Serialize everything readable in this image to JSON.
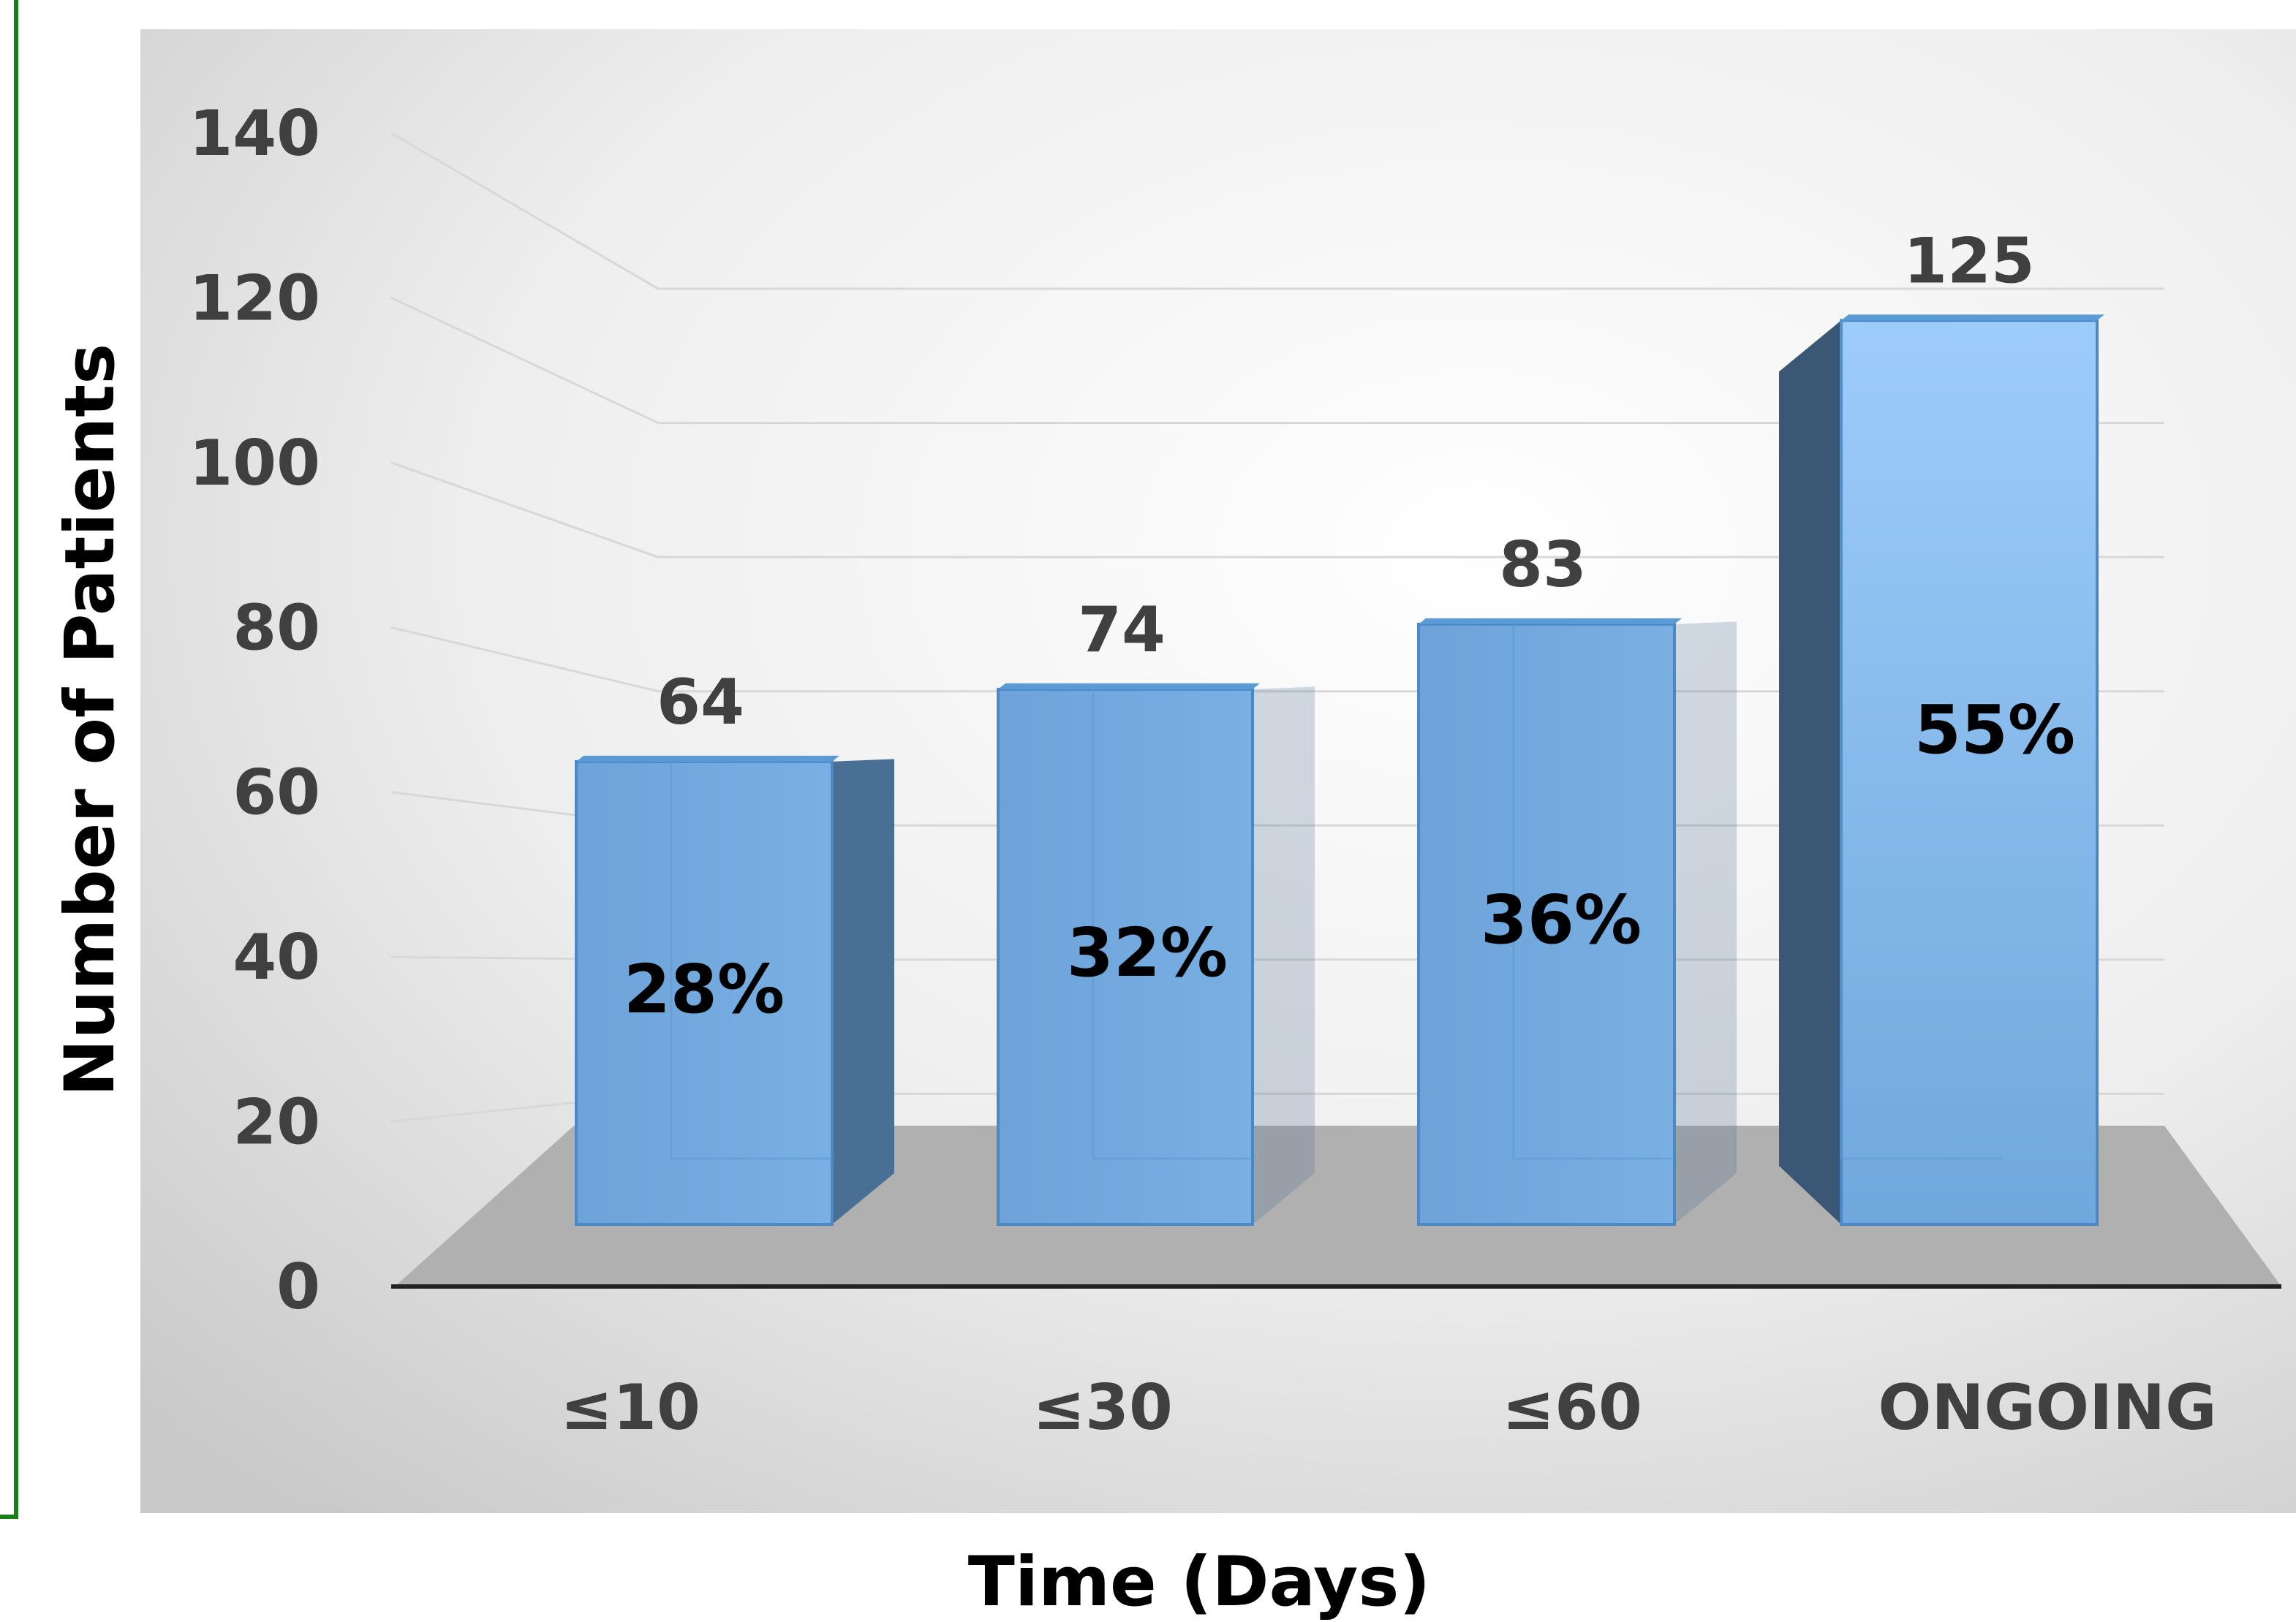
{
  "chart_data": {
    "type": "bar",
    "categories": [
      "≤10",
      "≤30",
      "≤60",
      "ONGOING"
    ],
    "values": [
      64,
      74,
      83,
      125
    ],
    "percent_labels": [
      "28%",
      "32%",
      "36%",
      "55%"
    ],
    "value_labels": [
      "64",
      "74",
      "83",
      "125"
    ],
    "xlabel": "Time (Days)",
    "ylabel": "Number of Patients",
    "ylim": [
      0,
      140
    ],
    "yticks": [
      "0",
      "20",
      "40",
      "60",
      "80",
      "100",
      "120",
      "140"
    ],
    "grid": true,
    "legend": "none",
    "style": "3d-column",
    "colors": {
      "bar_front": "#6fa8dc",
      "bar_side": "#4a6f94",
      "bar_top": "#5b9bd5",
      "floor": "#b0b0b0",
      "frame": "#1a7f1a"
    }
  }
}
